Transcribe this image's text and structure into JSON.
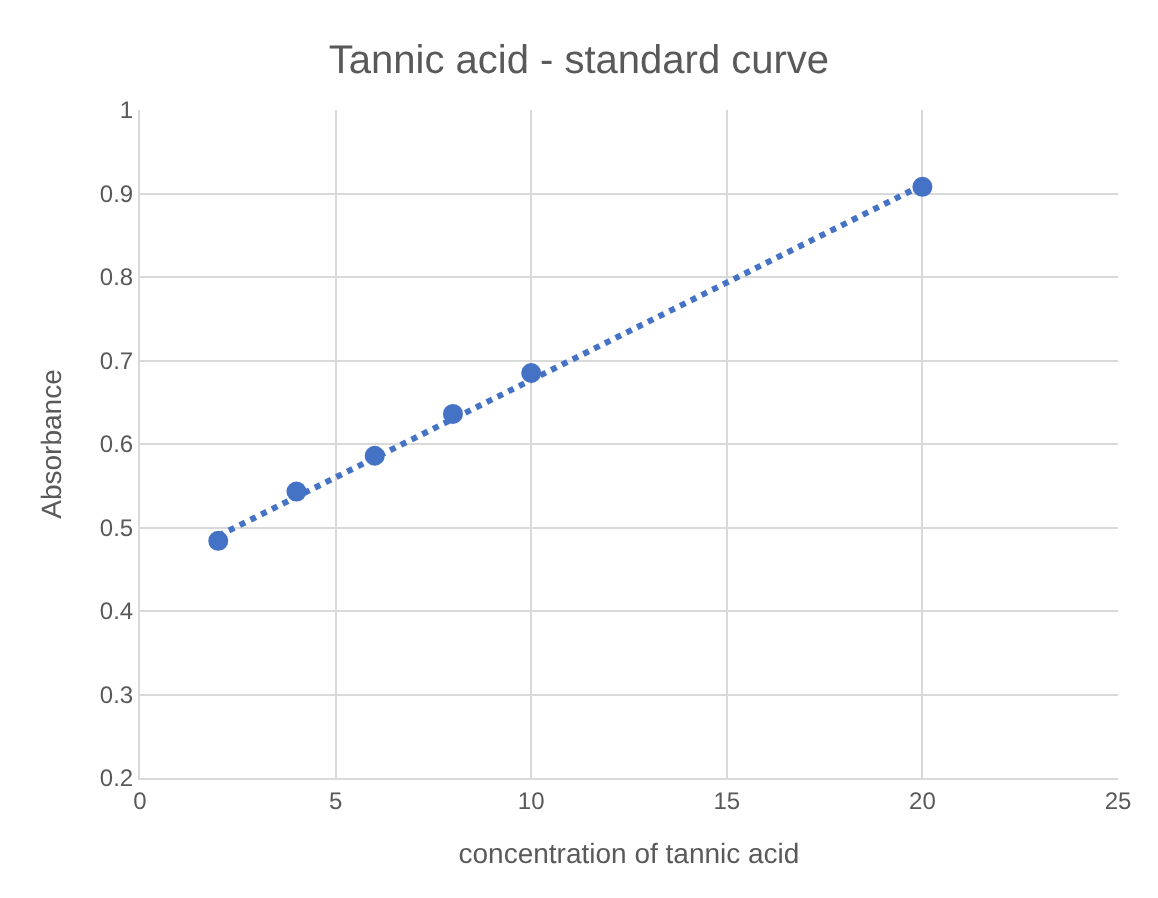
{
  "chart_data": {
    "type": "scatter",
    "title": "Tannic acid - standard curve",
    "xlabel": "concentration of tannic acid",
    "ylabel": "Absorbance",
    "series": [
      {
        "color": "#4472c4",
        "x": [
          2,
          4,
          6,
          8,
          10,
          20
        ],
        "values": [
          0.484,
          0.543,
          0.586,
          0.636,
          0.685,
          0.908
        ],
        "marker": "circle"
      },
      {
        "type": "line",
        "color": "#4472c4",
        "x": [
          2,
          20
        ],
        "values": [
          0.49,
          0.91
        ],
        "marker": "none",
        "line_style": "dotted"
      }
    ],
    "xlim": [
      0,
      25
    ],
    "xticks": [
      0,
      5,
      10,
      15,
      20,
      25
    ],
    "ylim": [
      0.2,
      1
    ],
    "yticks": [
      0.2,
      0.3,
      0.4,
      0.5,
      0.6,
      0.7,
      0.8,
      0.9,
      1
    ],
    "grid": true
  }
}
